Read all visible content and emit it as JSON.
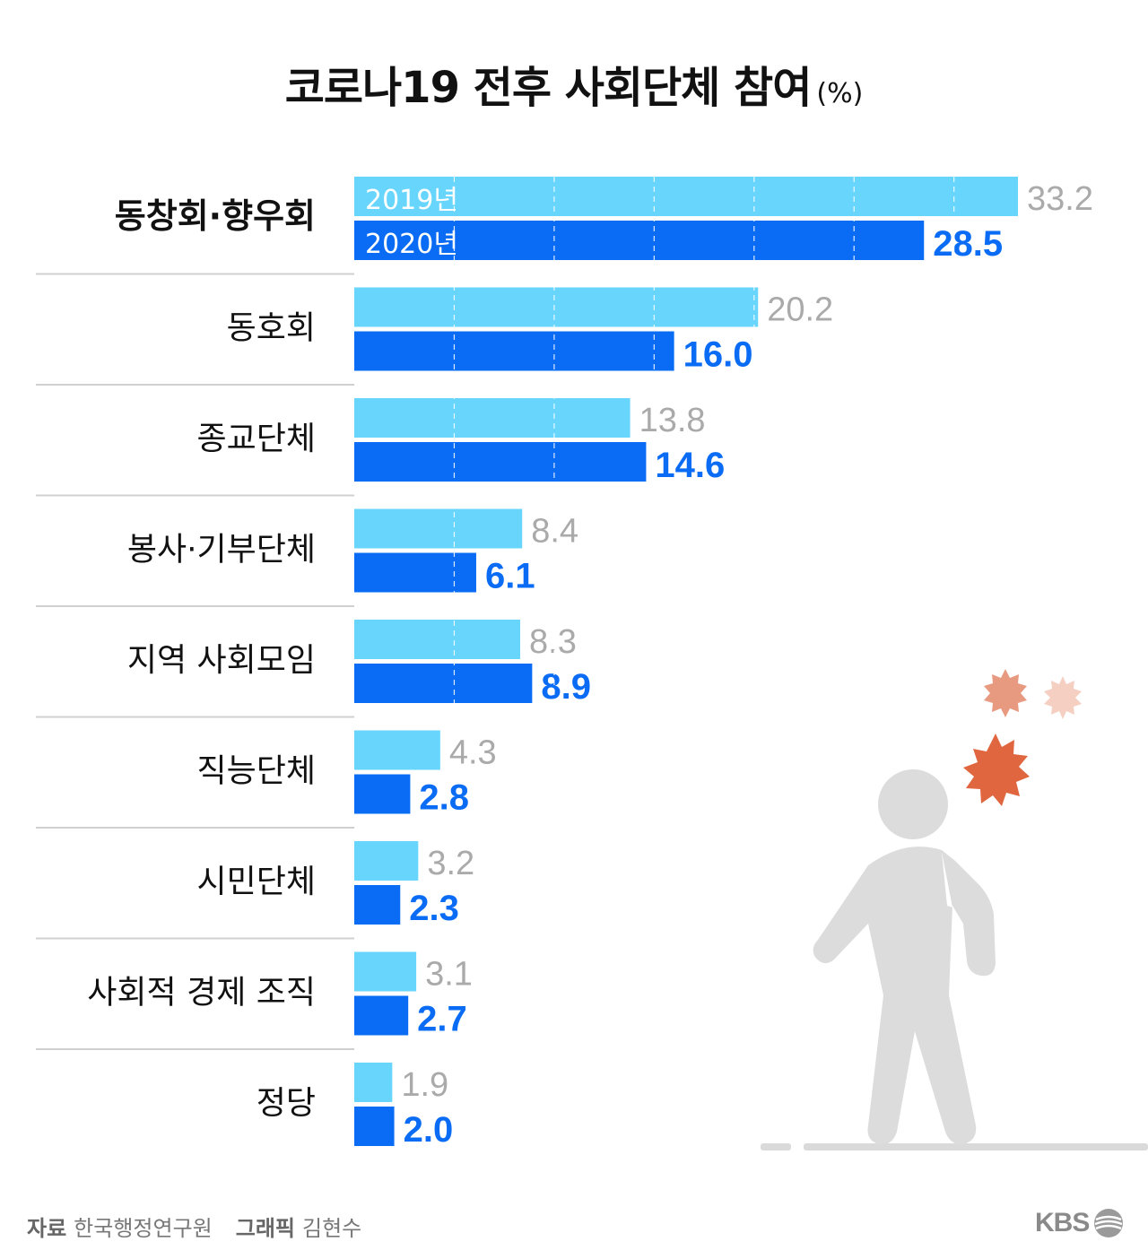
{
  "title": "코로나19 전후 사회단체 참여",
  "unit": "(%)",
  "legend": {
    "y2019": "2019년",
    "y2020": "2020년"
  },
  "colors": {
    "y2019": "#67d5fc",
    "y2020": "#0a6cf5",
    "label2019": "#aaaaaa",
    "label2020": "#0a6cf5",
    "ground": "#dadada",
    "figure": "#dcdcdc",
    "virus": "#e06640"
  },
  "footer": {
    "source_label": "자료",
    "source": "한국행정연구원",
    "graphic_label": "그래픽",
    "graphic": "김현수"
  },
  "logo": "KBS",
  "chart_data": {
    "type": "bar",
    "orientation": "horizontal",
    "title": "코로나19 전후 사회단체 참여",
    "categories": [
      "동창회·향우회",
      "동호회",
      "종교단체",
      "봉사·기부단체",
      "지역 사회모임",
      "직능단체",
      "시민단체",
      "사회적 경제 조직",
      "정당"
    ],
    "series": [
      {
        "name": "2019년",
        "values": [
          33.2,
          20.2,
          13.8,
          8.4,
          8.3,
          4.3,
          3.2,
          3.1,
          1.9
        ]
      },
      {
        "name": "2020년",
        "values": [
          28.5,
          16.0,
          14.6,
          6.1,
          8.9,
          2.8,
          2.3,
          2.7,
          2.0
        ]
      }
    ],
    "value_labels_2019": [
      "33.2",
      "20.2",
      "13.8",
      "8.4",
      "8.3",
      "4.3",
      "3.2",
      "3.1",
      "1.9"
    ],
    "value_labels_2020": [
      "28.5",
      "16.0",
      "14.6",
      "6.1",
      "8.9",
      "2.8",
      "2.3",
      "2.7",
      "2.0"
    ],
    "xlim": [
      0,
      33.2
    ],
    "grid": true,
    "legend": "inside-first-bars"
  }
}
